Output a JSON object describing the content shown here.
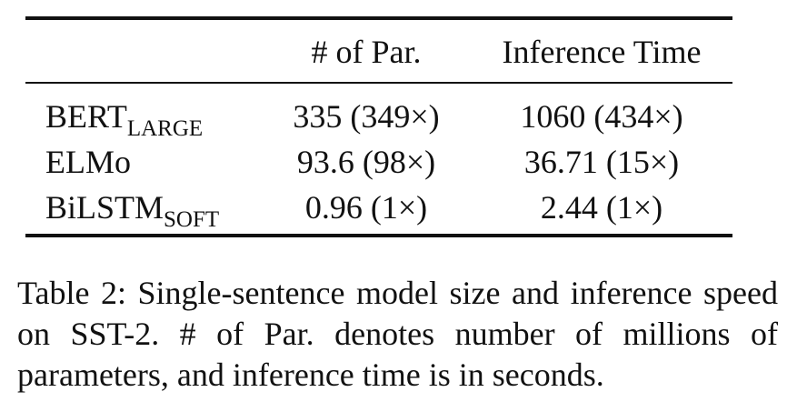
{
  "table": {
    "headers": {
      "model": "",
      "params": "# of Par.",
      "time": "Inference Time"
    },
    "rows": [
      {
        "model": "BERT",
        "model_sub": "LARGE",
        "params": "335 (349×)",
        "time": "1060 (434×)"
      },
      {
        "model": "ELMo",
        "model_sub": "",
        "params": "93.6 (98×)",
        "time": "36.71 (15×)"
      },
      {
        "model": "BiLSTM",
        "model_sub": "SOFT",
        "params": "0.96 (1×)",
        "time": "2.44 (1×)"
      }
    ]
  },
  "caption": "Table 2: Single-sentence model size and inference speed on SST-2. # of Par. denotes number of millions of parameters, and inference time is in seconds."
}
